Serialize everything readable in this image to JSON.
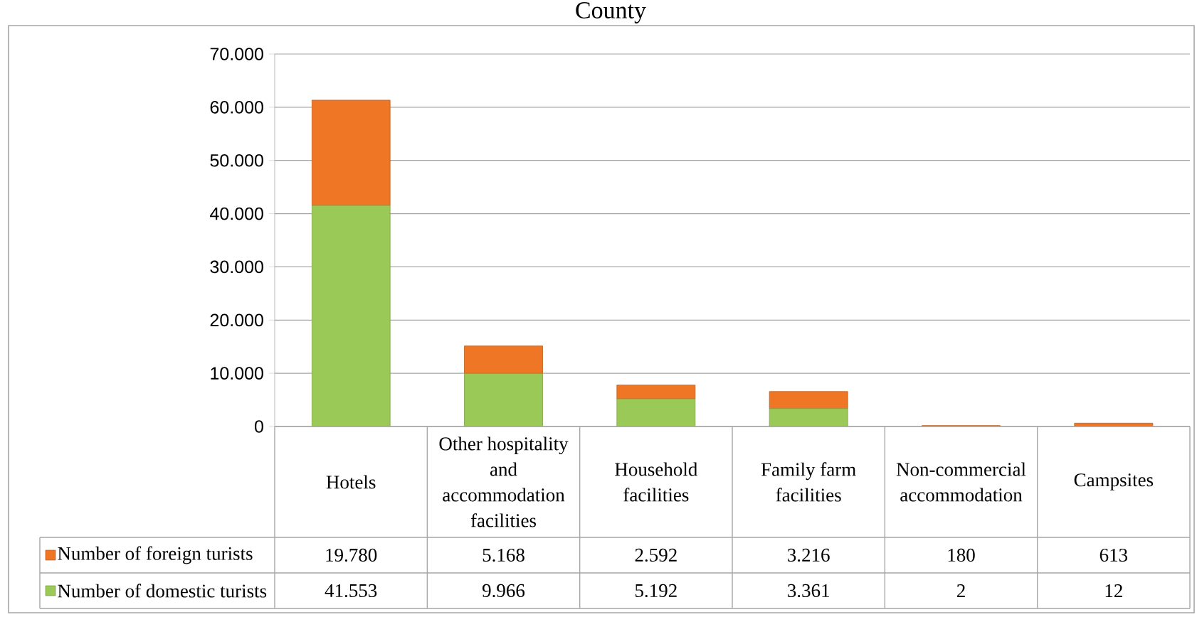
{
  "chart_data": {
    "type": "bar",
    "stacked": true,
    "title": "County",
    "categories": [
      "Hotels",
      "Other hospitality and accommodation facilities",
      "Household facilities",
      "Family farm facilities",
      "Non-commercial accommodation",
      "Campsites"
    ],
    "series": [
      {
        "name": "Number of domestic turists",
        "color": "#9BC957",
        "values": [
          41553,
          9966,
          5192,
          3361,
          2,
          12
        ],
        "value_labels": [
          "41.553",
          "9.966",
          "5.192",
          "3.361",
          "2",
          "12"
        ]
      },
      {
        "name": "Number of foreign turists",
        "color": "#EE7624",
        "values": [
          19780,
          5168,
          2592,
          3216,
          180,
          613
        ],
        "value_labels": [
          "19.780",
          "5.168",
          "2.592",
          "3.216",
          "180",
          "613"
        ]
      }
    ],
    "ylim": [
      0,
      70000
    ],
    "yticks": [
      0,
      {
        "value": 10000,
        "label": "10.000"
      },
      {
        "value": 20000,
        "label": "20.000"
      },
      {
        "value": 30000,
        "label": "30.000"
      },
      {
        "value": 40000,
        "label": "40.000"
      },
      {
        "value": 50000,
        "label": "50.000"
      },
      {
        "value": 60000,
        "label": "60.000"
      },
      {
        "value": 70000,
        "label": "70.000"
      }
    ],
    "grid": "y",
    "legend": "bottom"
  }
}
